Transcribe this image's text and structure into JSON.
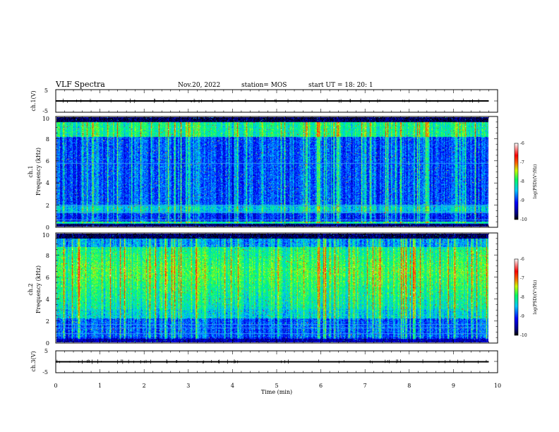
{
  "header": {
    "title": "VLF Spectra",
    "date": "Nov.20, 2022",
    "station": "station= MOS",
    "start": "start  UT =   18: 20: 1"
  },
  "chart_data": [
    {
      "type": "line",
      "panel": "ch1-waveform",
      "ylabel": "ch.1(V)",
      "ylim": [
        -5,
        5
      ],
      "yticks": [
        "5",
        "-5"
      ],
      "x": [
        0,
        9.8
      ],
      "values": [
        0,
        0
      ]
    },
    {
      "type": "heatmap",
      "panel": "ch1-spectrogram",
      "ylabel_line1": "ch.1",
      "ylabel_line2": "Frequency (kHz)",
      "ylim": [
        0,
        10
      ],
      "yticks": [
        "0",
        "2",
        "4",
        "6",
        "8",
        "10"
      ],
      "xlim": [
        0,
        10
      ],
      "data_end_min": 9.8,
      "colorbar": {
        "label": "log(PSD)(V²/Hz)",
        "range": [
          -10,
          -6
        ],
        "ticks": [
          "-6",
          "-7",
          "-8",
          "-9",
          "-10"
        ]
      },
      "pixel_lines_khz": [
        0.6,
        1.3,
        1.9,
        5.8
      ]
    },
    {
      "type": "heatmap",
      "panel": "ch2-spectrogram",
      "ylabel_line1": "ch.2",
      "ylabel_line2": "Frequency (kHz)",
      "ylim": [
        0,
        10
      ],
      "yticks": [
        "0",
        "2",
        "4",
        "6",
        "8",
        "10"
      ],
      "xlim": [
        0,
        10
      ],
      "data_end_min": 9.8,
      "colorbar": {
        "label": "log(PSD)(V²/Hz)",
        "range": [
          -10,
          -6
        ],
        "ticks": [
          "-6",
          "-7",
          "-8",
          "-9",
          "-10"
        ]
      },
      "pixel_lines_khz": [
        0.8,
        1.3,
        1.6
      ]
    },
    {
      "type": "line",
      "panel": "ch3-waveform",
      "ylabel": "ch.3(V)",
      "ylim": [
        -5,
        5
      ],
      "yticks": [
        "5",
        "-5"
      ],
      "x": [
        0,
        9.8
      ],
      "values": [
        0,
        0
      ]
    }
  ],
  "xaxis": {
    "label": "Time  (min)",
    "ticks": [
      "0",
      "1",
      "2",
      "3",
      "4",
      "5",
      "6",
      "7",
      "8",
      "9",
      "10"
    ]
  }
}
